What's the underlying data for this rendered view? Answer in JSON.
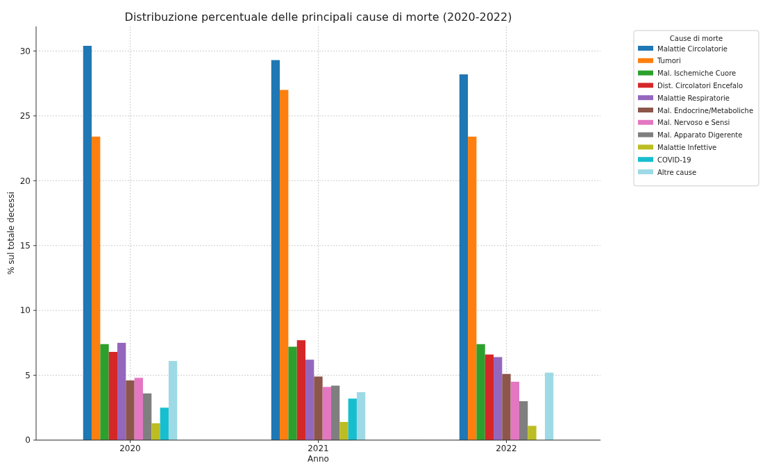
{
  "chart_data": {
    "type": "bar",
    "title": "Distribuzione percentuale delle principali cause di morte (2020-2022)",
    "xlabel": "Anno",
    "ylabel": "% sul totale decessi",
    "legend_title": "Cause di morte",
    "categories": [
      "2020",
      "2021",
      "2022"
    ],
    "series": [
      {
        "name": "Malattie Circolatorie",
        "color": "#1f77b4",
        "values": [
          30.4,
          29.3,
          28.2
        ]
      },
      {
        "name": "Tumori",
        "color": "#ff7f0e",
        "values": [
          23.4,
          27.0,
          23.4
        ]
      },
      {
        "name": "Mal. Ischemiche Cuore",
        "color": "#2ca02c",
        "values": [
          7.4,
          7.2,
          7.4
        ]
      },
      {
        "name": "Dist. Circolatori Encefalo",
        "color": "#d62728",
        "values": [
          6.8,
          7.7,
          6.6
        ]
      },
      {
        "name": "Malattie Respiratorie",
        "color": "#9467bd",
        "values": [
          7.5,
          6.2,
          6.4
        ]
      },
      {
        "name": "Mal. Endocrine/Metaboliche",
        "color": "#8c564b",
        "values": [
          4.6,
          4.9,
          5.1
        ]
      },
      {
        "name": "Mal. Nervoso e Sensi",
        "color": "#e377c2",
        "values": [
          4.8,
          4.1,
          4.5
        ]
      },
      {
        "name": "Mal. Apparato Digerente",
        "color": "#7f7f7f",
        "values": [
          3.6,
          4.2,
          3.0
        ]
      },
      {
        "name": "Malattie Infettive",
        "color": "#bcbd22",
        "values": [
          1.3,
          1.4,
          1.1
        ]
      },
      {
        "name": "COVID-19",
        "color": "#17becf",
        "values": [
          2.5,
          3.2,
          null
        ]
      },
      {
        "name": "Altre cause",
        "color": "#9edae5",
        "values": [
          6.1,
          3.7,
          5.2
        ]
      }
    ],
    "ylim": [
      0,
      31.9
    ],
    "yticks": [
      0,
      5,
      10,
      15,
      20,
      25,
      30
    ],
    "grid": true,
    "legend": "right"
  }
}
